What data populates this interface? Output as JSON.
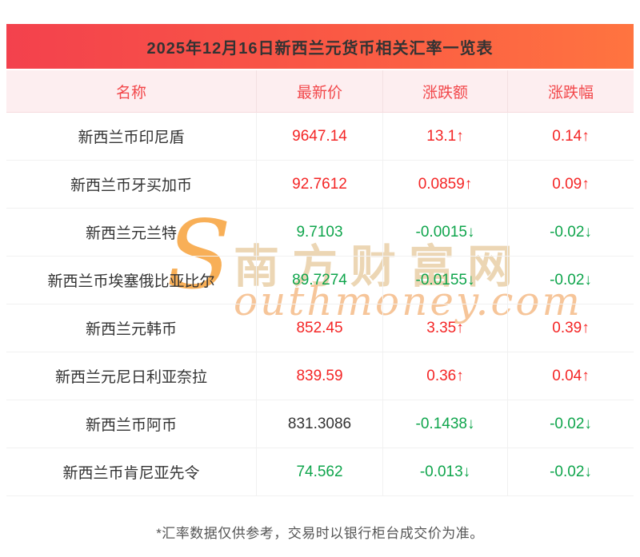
{
  "title": "2025年12月16日新西兰元货币相关汇率一览表",
  "chart_data": {
    "type": "table",
    "title": "2025年12月16日新西兰元货币相关汇率一览表",
    "columns": [
      "名称",
      "最新价",
      "涨跌额",
      "涨跌幅"
    ],
    "rows": [
      {
        "name": "新西兰币印尼盾",
        "price": "9647.14",
        "change": "13.1↑",
        "pct": "0.14↑",
        "trend": "up",
        "price_trend": "up"
      },
      {
        "name": "新西兰币牙买加币",
        "price": "92.7612",
        "change": "0.0859↑",
        "pct": "0.09↑",
        "trend": "up",
        "price_trend": "up"
      },
      {
        "name": "新西兰元兰特",
        "price": "9.7103",
        "change": "-0.0015↓",
        "pct": "-0.02↓",
        "trend": "down",
        "price_trend": "down"
      },
      {
        "name": "新西兰币埃塞俄比亚比尔",
        "price": "89.7274",
        "change": "-0.0155↓",
        "pct": "-0.02↓",
        "trend": "down",
        "price_trend": "down"
      },
      {
        "name": "新西兰元韩币",
        "price": "852.45",
        "change": "3.35↑",
        "pct": "0.39↑",
        "trend": "up",
        "price_trend": "up"
      },
      {
        "name": "新西兰元尼日利亚奈拉",
        "price": "839.59",
        "change": "0.36↑",
        "pct": "0.04↑",
        "trend": "up",
        "price_trend": "up"
      },
      {
        "name": "新西兰币阿币",
        "price": "831.3086",
        "change": "-0.1438↓",
        "pct": "-0.02↓",
        "trend": "down",
        "price_trend": "neutral"
      },
      {
        "name": "新西兰币肯尼亚先令",
        "price": "74.562",
        "change": "-0.013↓",
        "pct": "-0.02↓",
        "trend": "down",
        "price_trend": "down"
      }
    ]
  },
  "footer": "*汇率数据仅供参考，交易时以银行柜台成交价为准。",
  "watermark": {
    "s": "S",
    "cn": "南方财富网",
    "en": "outhmoney.com"
  },
  "colors": {
    "up": "#f42525",
    "down": "#0fa54c",
    "header_text": "#f2484b",
    "title_bg_left": "#f3414d",
    "title_bg_right": "#ff7440",
    "header_bg": "#fdeef0"
  }
}
